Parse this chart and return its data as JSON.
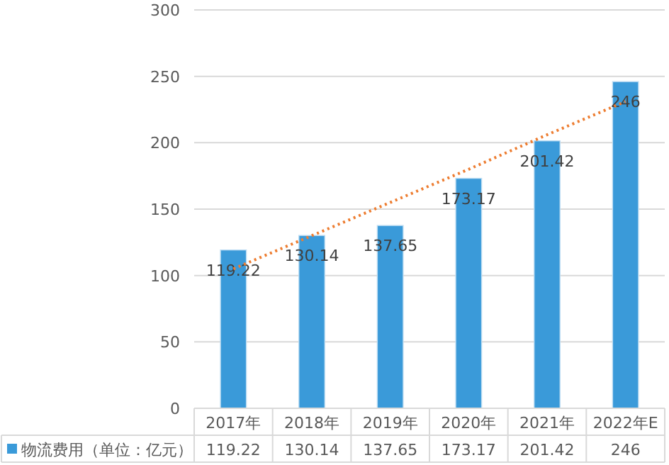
{
  "chart_data": {
    "type": "bar",
    "categories": [
      "2017年",
      "2018年",
      "2019年",
      "2020年",
      "2021年",
      "2022年E"
    ],
    "series": [
      {
        "name": "物流费用（单位：亿元）",
        "color": "#3a9ad9",
        "values": [
          119.22,
          130.14,
          137.65,
          173.17,
          201.42,
          246
        ],
        "value_labels": [
          "119.22",
          "130.14",
          "137.65",
          "173.17",
          "201.42",
          "246"
        ]
      },
      {
        "type": "line",
        "color": "#ed7d31",
        "line_style": "dotted",
        "values": [
          105,
          130,
          155,
          180,
          206,
          231
        ]
      }
    ],
    "ylim": [
      0,
      300
    ],
    "yticks": [
      0,
      50,
      100,
      150,
      200,
      250,
      300
    ],
    "grid": "y",
    "legend": "bottom left"
  }
}
